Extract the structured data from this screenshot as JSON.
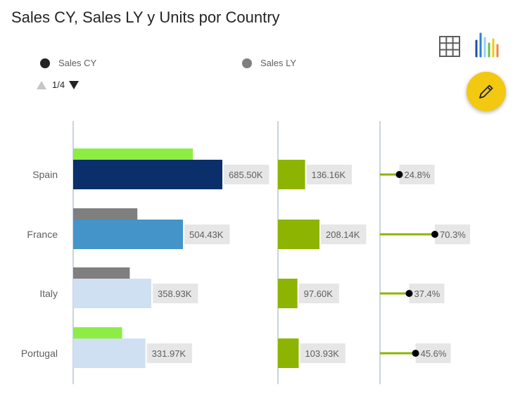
{
  "title": "Sales CY, Sales LY y Units por Country",
  "legend": {
    "items": [
      {
        "label": "Sales CY",
        "color": "#252423"
      },
      {
        "label": "Sales LY",
        "color": "#7f7f7f"
      }
    ]
  },
  "pager": {
    "label": "1/4"
  },
  "toolbar": {
    "icons": [
      "grid-icon",
      "colorful-bar-chart-icon"
    ],
    "fab_icon": "pencil-icon"
  },
  "colors": {
    "cy_palette": [
      "#0a2f6b",
      "#4494c9",
      "#cfe0f2",
      "#cfe0f2"
    ],
    "ly_palette": [
      "#8ded45",
      "#7f7f7f",
      "#7f7f7f",
      "#8ded45"
    ],
    "units_bar": "#8cb400",
    "label_bg": "#e6e6e6",
    "axis": "#c9d3e0",
    "fab": "#f2c811"
  },
  "chart_data": [
    {
      "type": "bar",
      "orientation": "horizontal",
      "categories": [
        "Spain",
        "France",
        "Italy",
        "Portugal"
      ],
      "series": [
        {
          "name": "Sales CY",
          "values": [
            685.5,
            504.43,
            358.93,
            331.97
          ],
          "labels": [
            "685.50K",
            "504.43K",
            "358.93K",
            "331.97K"
          ]
        },
        {
          "name": "Sales LY",
          "values": [
            550,
            295,
            260,
            225
          ]
        }
      ],
      "unit": "K",
      "xlim": [
        0,
        700
      ]
    },
    {
      "type": "bar",
      "orientation": "horizontal",
      "categories": [
        "Spain",
        "France",
        "Italy",
        "Portugal"
      ],
      "series": [
        {
          "name": "Units",
          "values": [
            136.16,
            208.14,
            97.6,
            103.93
          ],
          "labels": [
            "136.16K",
            "208.14K",
            "97.60K",
            "103.93K"
          ]
        }
      ],
      "unit": "K",
      "xlim": [
        0,
        330
      ]
    },
    {
      "type": "lollipop",
      "orientation": "horizontal",
      "categories": [
        "Spain",
        "France",
        "Italy",
        "Portugal"
      ],
      "series": [
        {
          "values": [
            24.8,
            70.3,
            37.4,
            45.6
          ],
          "labels": [
            "24.8%",
            "70.3%",
            "37.4%",
            "45.6%"
          ]
        }
      ],
      "unit": "%",
      "xlim": [
        0,
        100
      ]
    }
  ]
}
